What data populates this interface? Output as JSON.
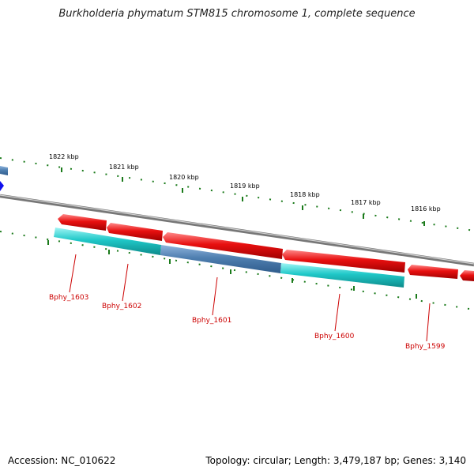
{
  "title": "Burkholderia phymatum STM815 chromosome 1, complete sequence",
  "footer": {
    "accession": "Accession: NC_010622",
    "summary": "Topology: circular; Length: 3,479,187 bp; Genes: 3,140"
  },
  "colors": {
    "forward_gene": "#e81010",
    "reverse_gene": "#20c8c8",
    "reverse_gene_alt": "#4f7fb0",
    "backbone": "#8a8a8a",
    "ticks": "#1a7a1a",
    "labels": "#cc0000",
    "marker": "#1010ee"
  },
  "ticks": [
    {
      "label": "1822 kbp"
    },
    {
      "label": "1821 kbp"
    },
    {
      "label": "1820 kbp"
    },
    {
      "label": "1819 kbp"
    },
    {
      "label": "1818 kbp"
    },
    {
      "label": "1817 kbp"
    },
    {
      "label": "1816 kbp"
    }
  ],
  "genes": [
    {
      "label": "Bphy_1603"
    },
    {
      "label": "Bphy_1602"
    },
    {
      "label": "Bphy_1601"
    },
    {
      "label": "Bphy_1600"
    },
    {
      "label": "Bphy_1599"
    }
  ]
}
